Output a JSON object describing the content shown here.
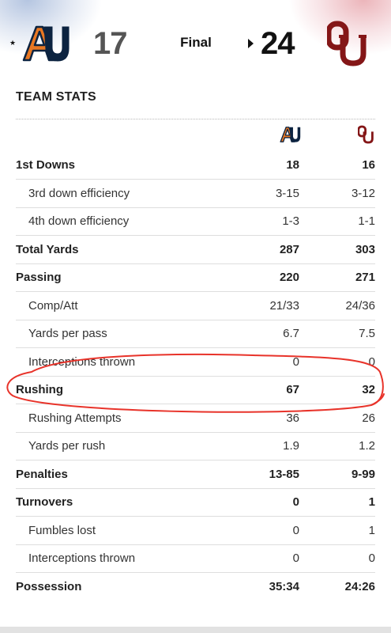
{
  "header": {
    "away_score": "17",
    "home_score": "24",
    "status": "Final",
    "away_team_logo": "auburn-au-logo",
    "home_team_logo": "oklahoma-ou-logo",
    "away_color": "#0c2340",
    "away_accent": "#e87722",
    "home_color": "#841617"
  },
  "team_stats": {
    "title": "TEAM STATS",
    "rows": [
      {
        "label": "1st Downs",
        "away": "18",
        "home": "16",
        "type": "main"
      },
      {
        "label": "3rd down efficiency",
        "away": "3-15",
        "home": "3-12",
        "type": "sub"
      },
      {
        "label": "4th down efficiency",
        "away": "1-3",
        "home": "1-1",
        "type": "sub"
      },
      {
        "label": "Total Yards",
        "away": "287",
        "home": "303",
        "type": "main"
      },
      {
        "label": "Passing",
        "away": "220",
        "home": "271",
        "type": "main"
      },
      {
        "label": "Comp/Att",
        "away": "21/33",
        "home": "24/36",
        "type": "sub"
      },
      {
        "label": "Yards per pass",
        "away": "6.7",
        "home": "7.5",
        "type": "sub"
      },
      {
        "label": "Interceptions thrown",
        "away": "0",
        "home": "0",
        "type": "sub"
      },
      {
        "label": "Rushing",
        "away": "67",
        "home": "32",
        "type": "main"
      },
      {
        "label": "Rushing Attempts",
        "away": "36",
        "home": "26",
        "type": "sub"
      },
      {
        "label": "Yards per rush",
        "away": "1.9",
        "home": "1.2",
        "type": "sub"
      },
      {
        "label": "Penalties",
        "away": "13-85",
        "home": "9-99",
        "type": "main"
      },
      {
        "label": "Turnovers",
        "away": "0",
        "home": "1",
        "type": "main"
      },
      {
        "label": "Fumbles lost",
        "away": "0",
        "home": "1",
        "type": "sub"
      },
      {
        "label": "Interceptions thrown",
        "away": "0",
        "home": "0",
        "type": "sub"
      },
      {
        "label": "Possession",
        "away": "35:34",
        "home": "24:26",
        "type": "main"
      }
    ]
  },
  "annotation": {
    "shape": "hand-drawn-ellipse",
    "color": "#e8332a",
    "target_row": "Rushing"
  }
}
